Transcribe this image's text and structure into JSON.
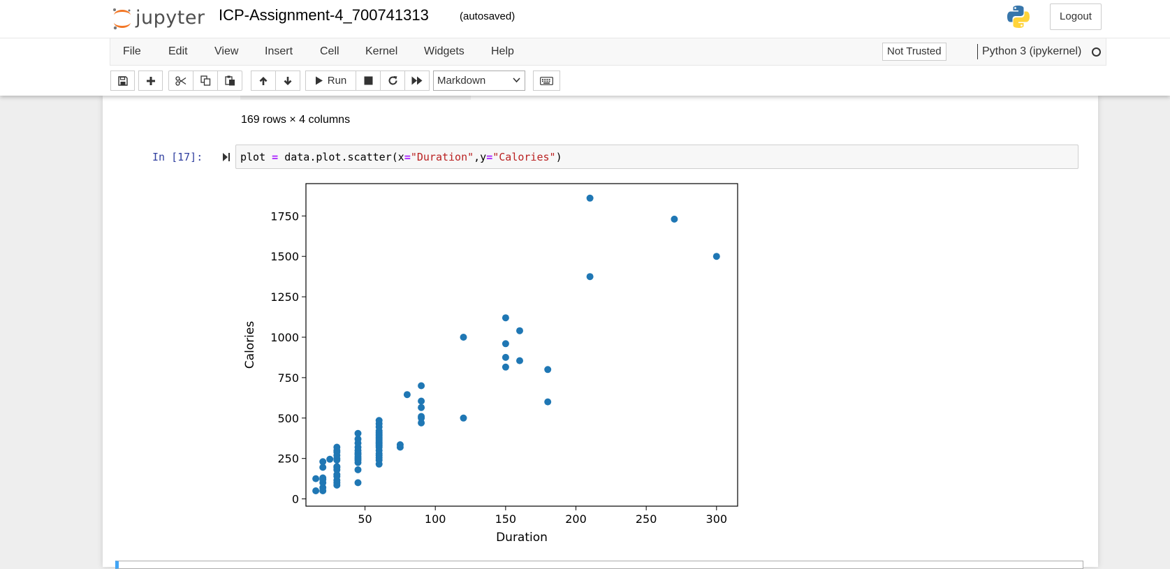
{
  "header": {
    "logo_text": "jupyter",
    "notebook_title": "ICP-Assignment-4_700741313",
    "autosave_status": "(autosaved)",
    "logout_label": "Logout"
  },
  "menubar": {
    "items": [
      "File",
      "Edit",
      "View",
      "Insert",
      "Cell",
      "Kernel",
      "Widgets",
      "Help"
    ],
    "trust_label": "Not Trusted",
    "kernel_name": "Python 3 (ipykernel)"
  },
  "toolbar": {
    "run_label": "Run",
    "cell_type": "Markdown",
    "buttons": [
      "save-icon",
      "plus-icon",
      "cut-icon",
      "copy-icon",
      "paste-icon",
      "arrow-up-icon",
      "arrow-down-icon",
      "play-icon",
      "stop-icon",
      "restart-icon",
      "fast-forward-icon",
      "keyboard-icon"
    ]
  },
  "notebook": {
    "dataframe_shape": "169 rows × 4 columns",
    "cell": {
      "prompt": "In [17]:",
      "code_parts": [
        "plot ",
        "=",
        " data.plot.scatter(x",
        "=",
        "\"Duration\"",
        ",y",
        "=",
        "\"Calories\"",
        ")"
      ]
    }
  },
  "chart_data": {
    "type": "scatter",
    "xlabel": "Duration",
    "ylabel": "Calories",
    "xlim": [
      8,
      315
    ],
    "ylim": [
      -45,
      1950
    ],
    "xticks": [
      50,
      100,
      150,
      200,
      250,
      300
    ],
    "yticks": [
      0,
      250,
      500,
      750,
      1000,
      1250,
      1500,
      1750
    ],
    "marker_color": "#1f77b4",
    "grid": false,
    "points": [
      [
        15,
        50
      ],
      [
        15,
        125
      ],
      [
        20,
        50
      ],
      [
        20,
        70
      ],
      [
        20,
        100
      ],
      [
        20,
        120
      ],
      [
        20,
        130
      ],
      [
        20,
        195
      ],
      [
        20,
        230
      ],
      [
        25,
        245
      ],
      [
        30,
        85
      ],
      [
        30,
        100
      ],
      [
        30,
        115
      ],
      [
        30,
        140
      ],
      [
        30,
        150
      ],
      [
        30,
        180
      ],
      [
        30,
        195
      ],
      [
        30,
        200
      ],
      [
        30,
        240
      ],
      [
        30,
        250
      ],
      [
        30,
        270
      ],
      [
        30,
        290
      ],
      [
        30,
        300
      ],
      [
        30,
        320
      ],
      [
        45,
        100
      ],
      [
        45,
        180
      ],
      [
        45,
        225
      ],
      [
        45,
        240
      ],
      [
        45,
        250
      ],
      [
        45,
        260
      ],
      [
        45,
        275
      ],
      [
        45,
        285
      ],
      [
        45,
        300
      ],
      [
        45,
        320
      ],
      [
        45,
        345
      ],
      [
        45,
        370
      ],
      [
        45,
        405
      ],
      [
        60,
        215
      ],
      [
        60,
        240
      ],
      [
        60,
        255
      ],
      [
        60,
        270
      ],
      [
        60,
        280
      ],
      [
        60,
        300
      ],
      [
        60,
        320
      ],
      [
        60,
        330
      ],
      [
        60,
        340
      ],
      [
        60,
        350
      ],
      [
        60,
        360
      ],
      [
        60,
        370
      ],
      [
        60,
        380
      ],
      [
        60,
        390
      ],
      [
        60,
        400
      ],
      [
        60,
        410
      ],
      [
        60,
        420
      ],
      [
        60,
        445
      ],
      [
        60,
        465
      ],
      [
        60,
        485
      ],
      [
        75,
        320
      ],
      [
        75,
        335
      ],
      [
        80,
        645
      ],
      [
        90,
        470
      ],
      [
        90,
        500
      ],
      [
        90,
        510
      ],
      [
        90,
        565
      ],
      [
        90,
        605
      ],
      [
        90,
        700
      ],
      [
        120,
        500
      ],
      [
        120,
        1000
      ],
      [
        150,
        815
      ],
      [
        150,
        875
      ],
      [
        150,
        960
      ],
      [
        150,
        1120
      ],
      [
        160,
        855
      ],
      [
        160,
        1040
      ],
      [
        180,
        600
      ],
      [
        180,
        800
      ],
      [
        210,
        1375
      ],
      [
        210,
        1860
      ],
      [
        270,
        1730
      ],
      [
        300,
        1500
      ]
    ]
  }
}
